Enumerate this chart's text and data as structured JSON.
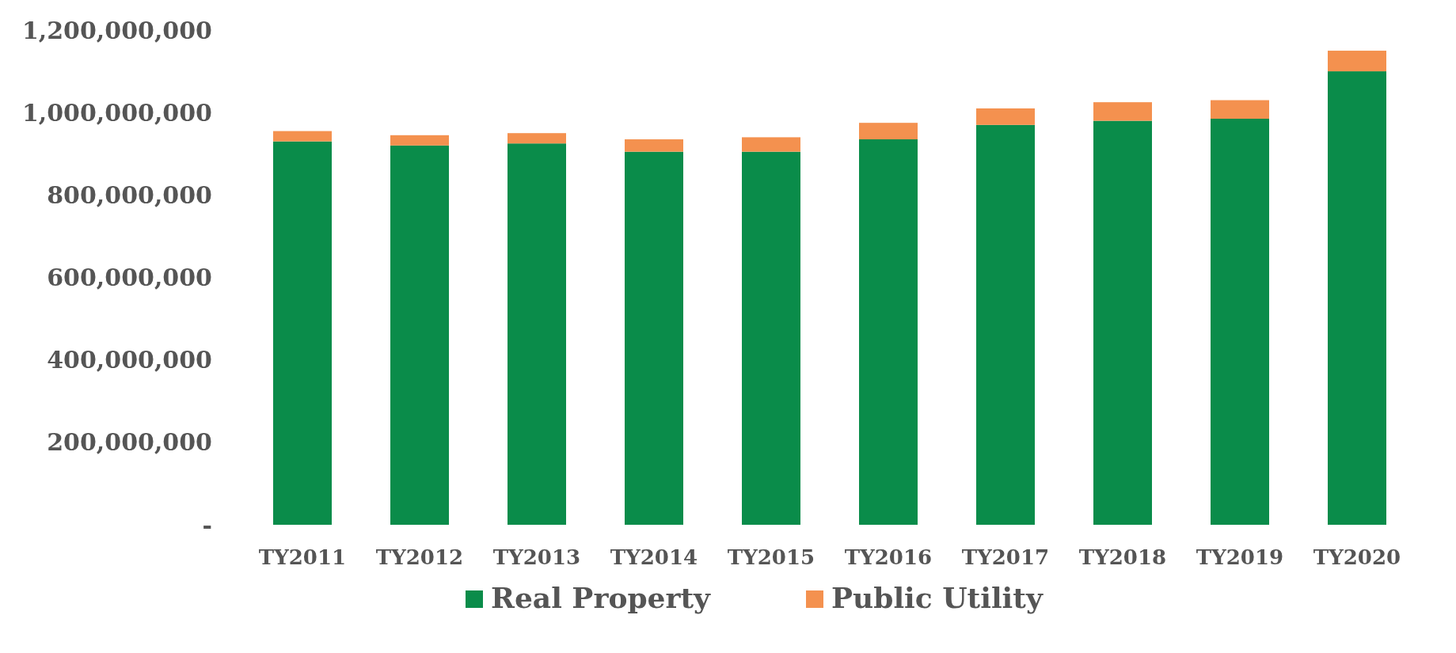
{
  "chart_data": {
    "type": "bar",
    "stacked": true,
    "categories": [
      "TY2011",
      "TY2012",
      "TY2013",
      "TY2014",
      "TY2015",
      "TY2016",
      "TY2017",
      "TY2018",
      "TY2019",
      "TY2020"
    ],
    "series": [
      {
        "name": "Real Property",
        "color": "#0a8c4a",
        "values": [
          930000000,
          920000000,
          925000000,
          905000000,
          905000000,
          935000000,
          970000000,
          980000000,
          985000000,
          1100000000
        ]
      },
      {
        "name": "Public Utility",
        "color": "#f4914f",
        "values": [
          25000000,
          25000000,
          25000000,
          30000000,
          35000000,
          40000000,
          40000000,
          45000000,
          45000000,
          50000000
        ]
      }
    ],
    "ylim": [
      0,
      1200000000
    ],
    "yticks": [
      {
        "value": 0,
        "label": "-"
      },
      {
        "value": 200000000,
        "label": "200,000,000"
      },
      {
        "value": 400000000,
        "label": "400,000,000"
      },
      {
        "value": 600000000,
        "label": "600,000,000"
      },
      {
        "value": 800000000,
        "label": "800,000,000"
      },
      {
        "value": 1000000000,
        "label": "1,000,000,000"
      },
      {
        "value": 1200000000,
        "label": "1,200,000,000"
      }
    ],
    "legend": "bottom"
  }
}
